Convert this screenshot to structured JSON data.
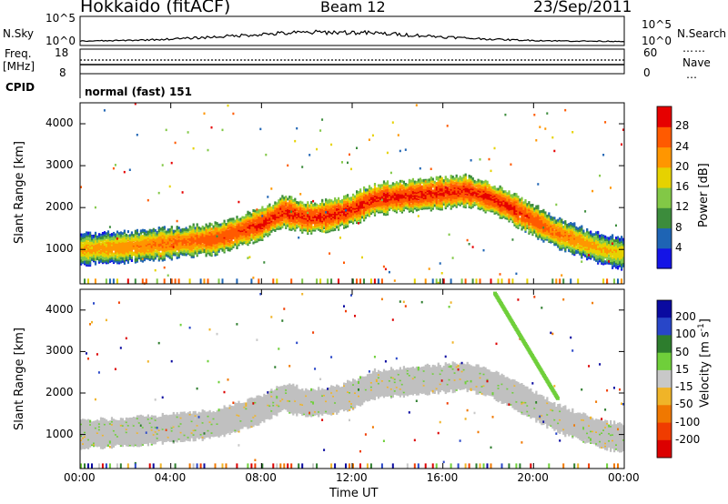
{
  "header": {
    "site": "Hokkaido (fitACF)",
    "beam": "Beam 12",
    "date": "23/Sep/2011"
  },
  "panels": {
    "nsky_label": "N.Sky",
    "nsearch_label": "N.Search",
    "noise_left_ticks": [
      "10^5",
      "10^0"
    ],
    "noise_right_ticks": [
      "10^5",
      "10^0"
    ],
    "freq_label": "Freq.",
    "freq_unit": "[MHz]",
    "freq_ticks": [
      "18",
      "8"
    ],
    "nave_label": "Nave",
    "nave_ticks": [
      "60",
      "0"
    ],
    "cpid_label": "CPID",
    "cpid_value": "normal (fast) 151"
  },
  "colors": {
    "power_scale": [
      "#1414e6",
      "#1e64b4",
      "#3c8c3c",
      "#82c846",
      "#e6d200",
      "#ff9600",
      "#ff5a00",
      "#e60000"
    ],
    "velocity_scale": [
      "#0a0aa0",
      "#2846c8",
      "#2d7d2d",
      "#6fcf3a",
      "#c8c8c8",
      "#f0b428",
      "#f07800",
      "#f03c00",
      "#dc0000"
    ],
    "ground_scatter": "#c0c0c0"
  },
  "chart_data": [
    {
      "type": "heatmap",
      "title": "Power",
      "xlabel": "Time UT",
      "ylabel": "Slant Range [km]",
      "x_ticks": [
        "00:00",
        "04:00",
        "08:00",
        "12:00",
        "16:00",
        "20:00",
        "00:00"
      ],
      "xlim_hours": [
        0,
        24
      ],
      "y_ticks": [
        1000,
        2000,
        3000,
        4000
      ],
      "ylim_km": [
        180,
        4500
      ],
      "colorbar_label": "Power [dB]",
      "colorbar_ticks": [
        4,
        8,
        12,
        16,
        20,
        24,
        28
      ],
      "main_echo_band": {
        "time_h": [
          0,
          2,
          4,
          6,
          8,
          9,
          10,
          11,
          12,
          13,
          14,
          15,
          16,
          17,
          18,
          19,
          20,
          21,
          22,
          23,
          24
        ],
        "range_km": [
          1000,
          1050,
          1150,
          1250,
          1600,
          1900,
          1750,
          1800,
          1950,
          2200,
          2250,
          2300,
          2350,
          2400,
          2250,
          2000,
          1700,
          1400,
          1200,
          1000,
          900
        ],
        "peak_power_db": [
          22,
          24,
          26,
          28,
          30,
          30,
          30,
          30,
          30,
          30,
          30,
          30,
          30,
          30,
          30,
          30,
          28,
          26,
          24,
          22,
          20
        ]
      }
    },
    {
      "type": "heatmap",
      "title": "Velocity",
      "xlabel": "Time UT",
      "ylabel": "Slant Range [km]",
      "x_ticks": [
        "00:00",
        "04:00",
        "08:00",
        "12:00",
        "16:00",
        "20:00",
        "00:00"
      ],
      "xlim_hours": [
        0,
        24
      ],
      "y_ticks": [
        1000,
        2000,
        3000,
        4000
      ],
      "ylim_km": [
        180,
        4500
      ],
      "colorbar_label": "Velocity [m s",
      "colorbar_label_sup": "-1",
      "colorbar_label_end": "]",
      "colorbar_ticks": [
        200,
        100,
        50,
        15,
        -15,
        -50,
        -100,
        -200
      ],
      "dominant_velocity_ms": 0,
      "ionospheric_band_velocity_ms": 40
    }
  ]
}
